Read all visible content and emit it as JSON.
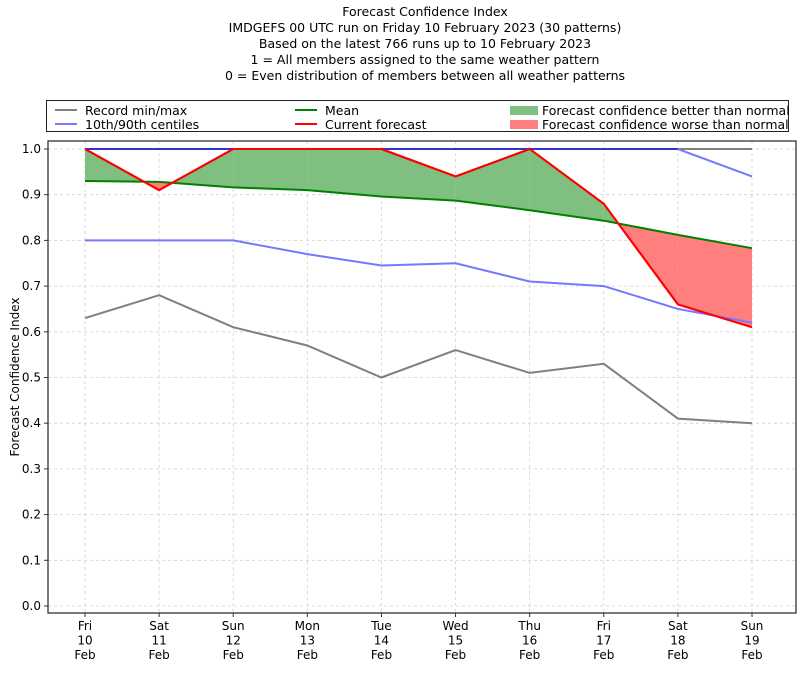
{
  "chart_data": {
    "type": "line",
    "title": "Forecast Confidence Index",
    "subtitle_lines": [
      "IMDGEFS 00 UTC run on Friday 10 February 2023 (30 patterns)",
      "Based on the latest 766 runs up to 10 February 2023",
      "1 = All members assigned to the same weather pattern",
      "0 = Even distribution of members between all weather patterns"
    ],
    "xlabel": "",
    "ylabel": "Forecast Confidence Index",
    "ylim": [
      0.0,
      1.0
    ],
    "yticks": [
      "0.0",
      "0.1",
      "0.2",
      "0.3",
      "0.4",
      "0.5",
      "0.6",
      "0.7",
      "0.8",
      "0.9",
      "1.0"
    ],
    "ytick_values": [
      0.0,
      0.1,
      0.2,
      0.3,
      0.4,
      0.5,
      0.6,
      0.7,
      0.8,
      0.9,
      1.0
    ],
    "grid": true,
    "legend_position": "top, above plot",
    "categories": [
      [
        "Fri",
        "10",
        "Feb"
      ],
      [
        "Sat",
        "11",
        "Feb"
      ],
      [
        "Sun",
        "12",
        "Feb"
      ],
      [
        "Mon",
        "13",
        "Feb"
      ],
      [
        "Tue",
        "14",
        "Feb"
      ],
      [
        "Wed",
        "15",
        "Feb"
      ],
      [
        "Thu",
        "16",
        "Feb"
      ],
      [
        "Fri",
        "17",
        "Feb"
      ],
      [
        "Sat",
        "18",
        "Feb"
      ],
      [
        "Sun",
        "19",
        "Feb"
      ]
    ],
    "series": [
      {
        "name": "Record max",
        "legend": "Record min/max",
        "color": "#808080",
        "values": [
          1.0,
          1.0,
          1.0,
          1.0,
          1.0,
          1.0,
          1.0,
          1.0,
          1.0,
          1.0
        ]
      },
      {
        "name": "Record min",
        "legend": "Record min/max",
        "color": "#808080",
        "values": [
          0.63,
          0.68,
          0.61,
          0.57,
          0.5,
          0.56,
          0.51,
          0.53,
          0.41,
          0.4
        ]
      },
      {
        "name": "90th centile",
        "legend": "10th/90th centiles",
        "color": "#7777ff",
        "values": [
          1.0,
          1.0,
          1.0,
          1.0,
          1.0,
          1.0,
          1.0,
          1.0,
          1.0,
          0.94
        ]
      },
      {
        "name": "10th centile",
        "legend": "10th/90th centiles",
        "color": "#7777ff",
        "values": [
          0.8,
          0.8,
          0.8,
          0.77,
          0.745,
          0.75,
          0.71,
          0.7,
          0.65,
          0.62
        ]
      },
      {
        "name": "Mean",
        "legend": "Mean",
        "color": "#008000",
        "values": [
          0.93,
          0.928,
          0.916,
          0.91,
          0.896,
          0.887,
          0.866,
          0.843,
          0.812,
          0.783
        ]
      },
      {
        "name": "Current forecast",
        "legend": "Current forecast",
        "color": "#ff0000",
        "values": [
          1.0,
          0.91,
          1.0,
          1.0,
          1.0,
          0.94,
          1.0,
          0.88,
          0.66,
          0.61
        ]
      }
    ],
    "fills": [
      {
        "name": "Forecast confidence better than normal",
        "color": "#7fbf7f",
        "where": "current > mean"
      },
      {
        "name": "Forecast confidence worse than normal",
        "color": "#ff7f7f",
        "where": "current < mean"
      }
    ]
  },
  "legend": {
    "record": "Record min/max",
    "centiles": "10th/90th centiles",
    "mean": "Mean",
    "current": "Current forecast",
    "better": "Forecast confidence better than normal",
    "worse": "Forecast confidence worse than normal"
  },
  "colors": {
    "record": "#808080",
    "centiles": "#7777ff",
    "mean": "#008000",
    "current": "#ff0000",
    "better": "#7fbf7f",
    "worse": "#ff7f7f"
  }
}
